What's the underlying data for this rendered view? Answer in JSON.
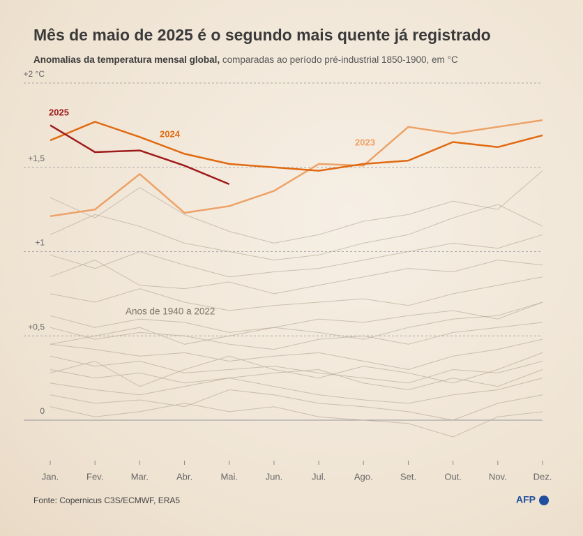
{
  "chart_data": {
    "type": "line",
    "title": "Mês de maio de 2025 é o segundo mais quente já registrado",
    "subtitle": {
      "emphasis": "Anomalias da temperatura mensal global,",
      "text": "comparadas ao período pré-industrial 1850-1900, em °C"
    },
    "categories": [
      "Jan.",
      "Fev.",
      "Mar.",
      "Abr.",
      "Mai.",
      "Jun.",
      "Jul.",
      "Ago.",
      "Set.",
      "Out.",
      "Nov.",
      "Dez."
    ],
    "ylim": [
      -0.2,
      2.05
    ],
    "yticks": [
      0,
      {
        "value": 0.5,
        "label": "+0,5"
      },
      {
        "value": 1,
        "label": "+1"
      },
      {
        "value": 1.5,
        "label": "+1,5"
      },
      {
        "value": 2,
        "label": "+2 °C"
      }
    ],
    "grid": true,
    "series": [
      {
        "name": "2025",
        "color": "#9e1b1b",
        "values": [
          1.75,
          1.59,
          1.6,
          1.51,
          1.4,
          null,
          null,
          null,
          null,
          null,
          null,
          null
        ]
      },
      {
        "name": "2024",
        "color": "#e06a12",
        "values": [
          1.66,
          1.77,
          1.68,
          1.58,
          1.52,
          1.5,
          1.48,
          1.52,
          1.54,
          1.65,
          1.62,
          1.69
        ]
      },
      {
        "name": "2023",
        "color": "#eda166",
        "values": [
          1.21,
          1.25,
          1.46,
          1.23,
          1.27,
          1.36,
          1.52,
          1.51,
          1.74,
          1.7,
          1.74,
          1.78
        ]
      }
    ],
    "background": {
      "label": "Anos de 1940 a 2022",
      "color": "#b9ad9b",
      "lines": [
        [
          1.32,
          1.2,
          1.38,
          1.22,
          1.12,
          1.05,
          1.1,
          1.18,
          1.22,
          1.3,
          1.25,
          1.48
        ],
        [
          1.1,
          1.22,
          1.15,
          1.05,
          1.0,
          0.95,
          0.98,
          1.05,
          1.1,
          1.2,
          1.28,
          1.15
        ],
        [
          0.98,
          0.9,
          1.0,
          0.92,
          0.85,
          0.88,
          0.9,
          0.95,
          1.0,
          1.05,
          1.02,
          1.1
        ],
        [
          0.85,
          0.95,
          0.8,
          0.78,
          0.82,
          0.75,
          0.8,
          0.85,
          0.9,
          0.88,
          0.95,
          0.92
        ],
        [
          0.75,
          0.7,
          0.78,
          0.7,
          0.65,
          0.68,
          0.7,
          0.72,
          0.68,
          0.75,
          0.8,
          0.85
        ],
        [
          0.62,
          0.55,
          0.6,
          0.58,
          0.52,
          0.55,
          0.6,
          0.58,
          0.62,
          0.65,
          0.6,
          0.7
        ],
        [
          0.55,
          0.48,
          0.52,
          0.5,
          0.45,
          0.42,
          0.48,
          0.5,
          0.45,
          0.52,
          0.55,
          0.58
        ],
        [
          0.45,
          0.42,
          0.38,
          0.4,
          0.35,
          0.38,
          0.4,
          0.35,
          0.3,
          0.38,
          0.42,
          0.48
        ],
        [
          0.38,
          0.32,
          0.35,
          0.28,
          0.3,
          0.32,
          0.28,
          0.25,
          0.22,
          0.3,
          0.28,
          0.35
        ],
        [
          0.3,
          0.25,
          0.28,
          0.22,
          0.25,
          0.28,
          0.3,
          0.22,
          0.18,
          0.25,
          0.2,
          0.3
        ],
        [
          0.22,
          0.18,
          0.15,
          0.2,
          0.25,
          0.2,
          0.15,
          0.12,
          0.1,
          0.15,
          0.18,
          0.25
        ],
        [
          0.15,
          0.1,
          0.12,
          0.08,
          0.18,
          0.15,
          0.1,
          0.08,
          0.05,
          0.0,
          0.1,
          0.15
        ],
        [
          0.08,
          0.02,
          0.05,
          0.1,
          0.05,
          0.08,
          0.02,
          0.0,
          -0.02,
          -0.1,
          0.02,
          0.05
        ],
        [
          0.45,
          0.5,
          0.55,
          0.45,
          0.5,
          0.55,
          0.52,
          0.48,
          0.55,
          0.6,
          0.62,
          0.7
        ],
        [
          0.28,
          0.35,
          0.2,
          0.3,
          0.38,
          0.3,
          0.25,
          0.32,
          0.28,
          0.22,
          0.3,
          0.4
        ]
      ]
    },
    "source": "Fonte: Copernicus C3S/ECMWF, ERA5",
    "logo": "AFP"
  }
}
